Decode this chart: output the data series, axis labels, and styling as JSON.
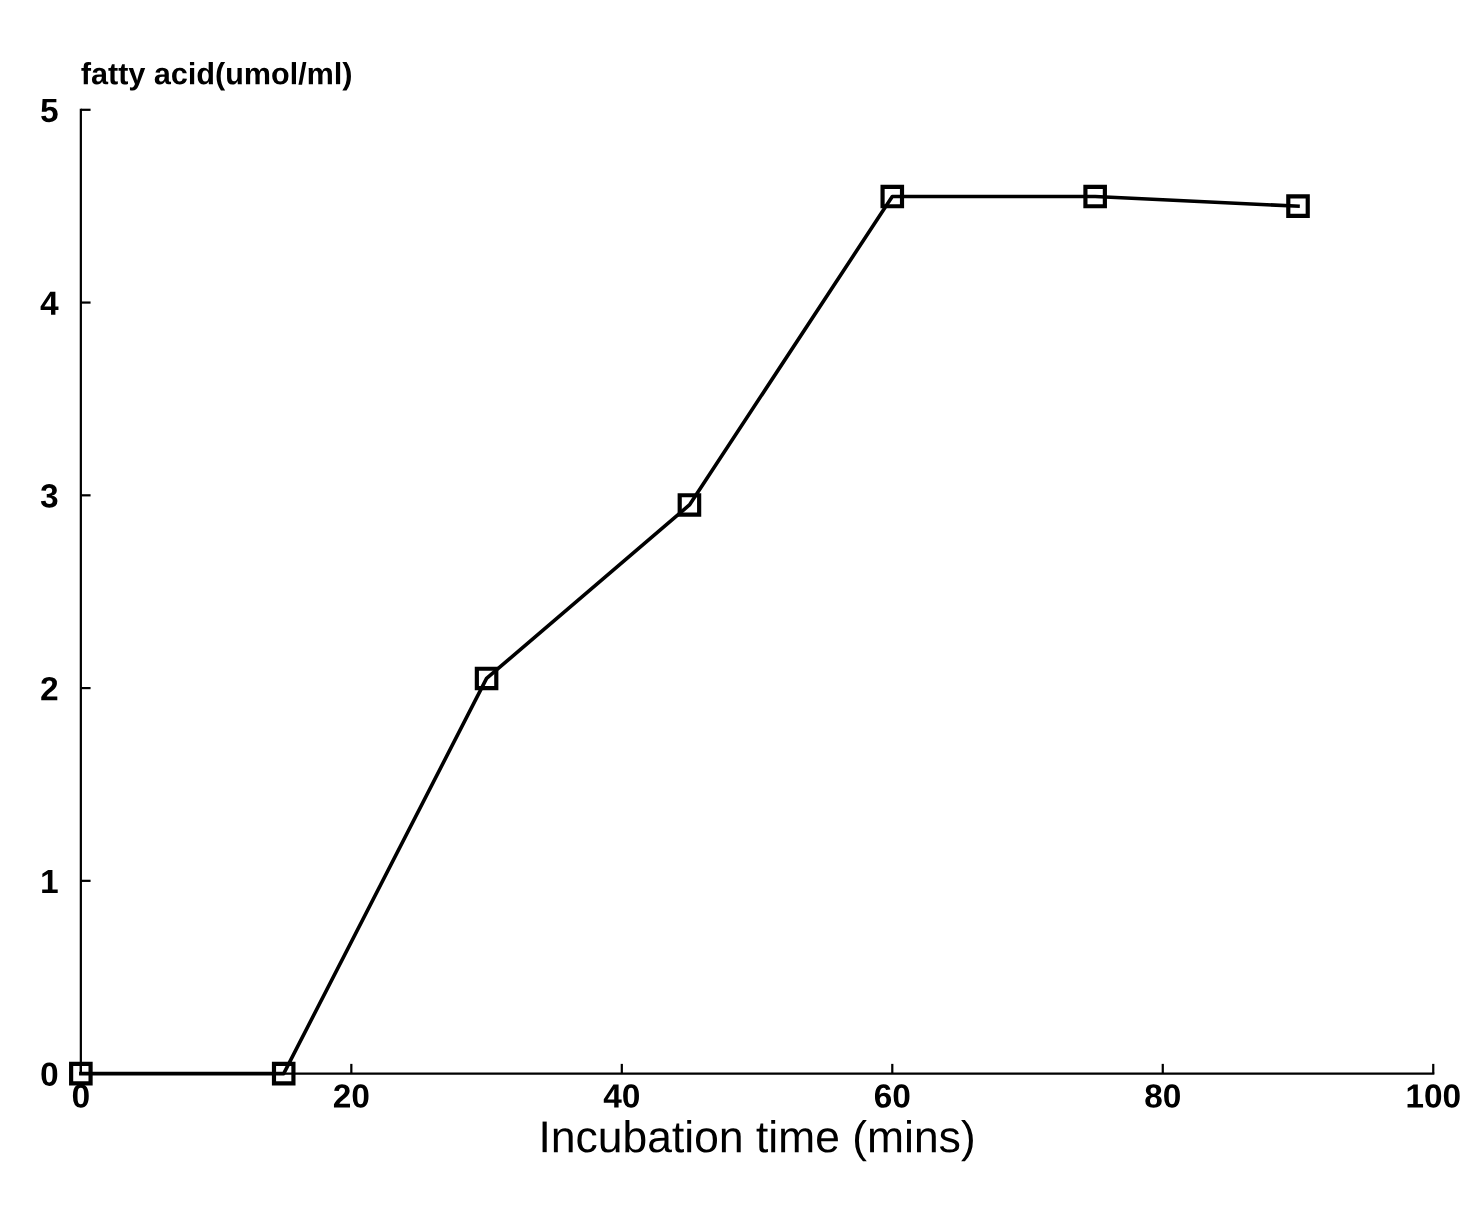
{
  "chart_data": {
    "type": "line",
    "xlabel": "Incubation time (mins)",
    "ylabel": "fatty acid(umol/ml)",
    "x": [
      0,
      15,
      30,
      45,
      60,
      75,
      90
    ],
    "series": [
      {
        "color": "#000000",
        "values": [
          0,
          0,
          2.05,
          2.95,
          4.55,
          4.55,
          4.5
        ]
      }
    ],
    "xlim": [
      0,
      100
    ],
    "xticks": [
      0,
      20,
      40,
      60,
      80,
      100
    ],
    "ylim": [
      0,
      5
    ],
    "yticks": [
      0,
      1,
      2,
      3,
      4,
      5
    ],
    "marker": "square",
    "line_style": "solid",
    "grid": false,
    "legend": false
  }
}
